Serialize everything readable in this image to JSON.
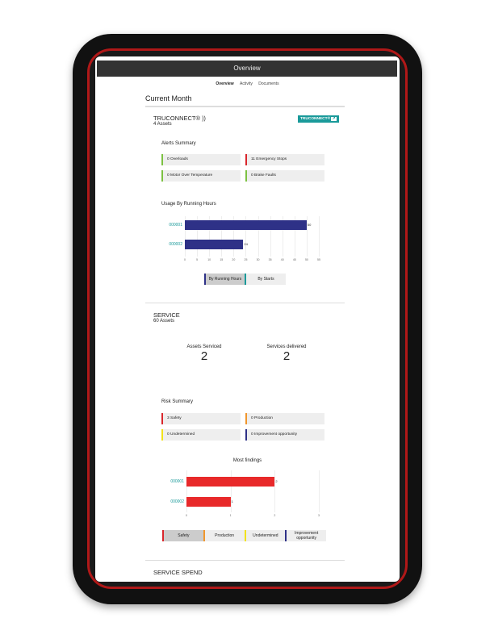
{
  "header": {
    "title": "Overview"
  },
  "tabs": [
    {
      "label": "Overview",
      "active": true
    },
    {
      "label": "Activity"
    },
    {
      "label": "Documents"
    }
  ],
  "page_title": "Current Month",
  "truconnect": {
    "title": "TRUCONNECT®",
    "assets": "4 Assets",
    "badge": "TRUCONNECT®",
    "rss_icon": "rss-icon",
    "external_icon": "external-link-icon",
    "alerts_title": "Alerts Summary",
    "alerts": [
      {
        "text": "0 Overloads",
        "color": "#7cc142"
      },
      {
        "text": "11 Emergency Stops",
        "color": "#d9262c"
      },
      {
        "text": "0 Motor Over Temperature",
        "color": "#7cc142"
      },
      {
        "text": "0 Brake Faults",
        "color": "#7cc142"
      }
    ],
    "usage_title": "Usage By Running Hours",
    "buttons": [
      {
        "label": "By Running Hours",
        "color": "#2e3187",
        "active": true
      },
      {
        "label": "By Starts",
        "color": "#1a9a9a"
      }
    ]
  },
  "service": {
    "title": "SERVICE",
    "assets": "60 Assets",
    "kpis": [
      {
        "label": "Assets Serviced",
        "value": "2"
      },
      {
        "label": "Services delivered",
        "value": "2"
      }
    ],
    "risk_title": "Risk Summary",
    "risks": [
      {
        "text": "3 Safety",
        "color": "#d9262c"
      },
      {
        "text": "0 Production",
        "color": "#f0962d"
      },
      {
        "text": "0 Undetermined",
        "color": "#f2e21b"
      },
      {
        "text": "0 Improvement opportunity",
        "color": "#2e3187"
      }
    ],
    "findings_title": "Most findings",
    "buttons": [
      {
        "label": "Safety",
        "color": "#d9262c",
        "active": true
      },
      {
        "label": "Production",
        "color": "#f0962d"
      },
      {
        "label": "Undetermined",
        "color": "#f2e21b"
      },
      {
        "label": "Improvement opportunity",
        "color": "#2e3187"
      }
    ]
  },
  "service_spend": {
    "title": "SERVICE SPEND"
  },
  "chart_data": [
    {
      "type": "bar",
      "orientation": "horizontal",
      "title": "Usage By Running Hours",
      "categories": [
        "000001",
        "000002"
      ],
      "values": [
        50,
        24
      ],
      "xlim": [
        0,
        55
      ],
      "xticks": [
        0,
        5,
        10,
        15,
        20,
        25,
        30,
        35,
        40,
        45,
        50,
        55
      ],
      "color": "#2e3187",
      "grid": true
    },
    {
      "type": "bar",
      "orientation": "horizontal",
      "title": "Most findings",
      "categories": [
        "000001",
        "000002"
      ],
      "values": [
        2,
        1
      ],
      "xlim": [
        0,
        3
      ],
      "xticks": [
        0,
        1,
        2,
        3
      ],
      "color": "#e8292a",
      "grid": true
    }
  ]
}
